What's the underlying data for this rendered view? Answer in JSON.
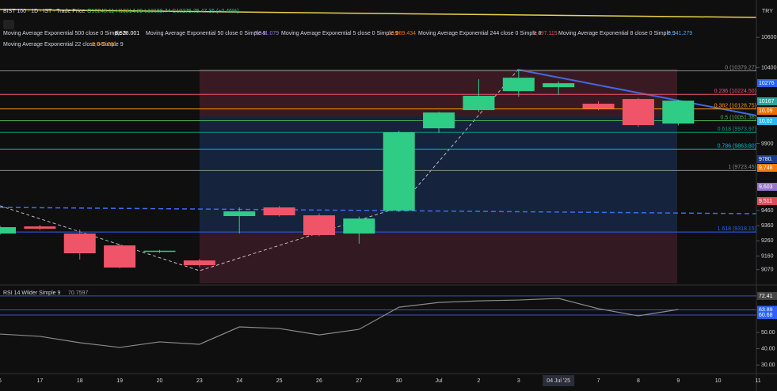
{
  "header": {
    "symbol": "BIST 100 · 1D · IST · Trade Price",
    "ohlc": "O10248.11 H10314.29 L10188.74 C10275.75 47.36 (+0.46%)",
    "currency": "TRY"
  },
  "indicators": [
    {
      "name": "Moving Average Exponential 500 close 0 Simple 9",
      "value": "8,528.001",
      "color": "#ffffff"
    },
    {
      "name": "Moving Average Exponential 50 close 0 Simple 9",
      "value": "9,541.079",
      "color": "#9575cd"
    },
    {
      "name": "Moving Average Exponential 5 close 0 Simple 9",
      "value": "10,089.434",
      "color": "#ef6c00"
    },
    {
      "name": "Moving Average Exponential 244 close 0 Simple 9",
      "value": "9,497.115",
      "color": "#e04a5a"
    },
    {
      "name": "Moving Average Exponential 8 close 0 Simple 9",
      "value": "9,941.279",
      "color": "#42a5f5"
    },
    {
      "name": "Moving Average Exponential 22 close 0 Simple 9",
      "value": "9,640.261",
      "color": "#f57c00"
    }
  ],
  "price_tags": [
    {
      "label": "10276",
      "color": "#2962ff"
    },
    {
      "label": "10167",
      "color": "#26a69a"
    },
    {
      "label": "10,09",
      "color": "#ef6c00"
    },
    {
      "label": "10,02",
      "color": "#29b6f6"
    },
    {
      "label": "9780.",
      "color": "#1e3a8a"
    },
    {
      "label": "9,748",
      "color": "#f57c00"
    },
    {
      "label": "9,603",
      "color": "#9575cd"
    },
    {
      "label": "9,511",
      "color": "#e04a5a"
    }
  ],
  "chart_data": [
    {
      "type": "candlestick",
      "categories": [
        "6",
        "17",
        "18",
        "19",
        "20",
        "23",
        "24",
        "25",
        "26",
        "27",
        "30",
        "Jul",
        "2",
        "3",
        "04 Jul '25",
        "7",
        "8",
        "9",
        "10",
        "11"
      ],
      "open": [
        9308,
        9355,
        9308,
        9230,
        9188,
        9131,
        9423,
        9480,
        9428,
        9308,
        9459,
        10001,
        10121,
        10246,
        10272,
        10163,
        10194,
        10032,
        null,
        null
      ],
      "high": [
        9360,
        9365,
        9334,
        9240,
        9200,
        9140,
        9480,
        9490,
        9440,
        9420,
        9985,
        10110,
        10324,
        10386,
        10310,
        10180,
        10200,
        10190,
        null,
        null
      ],
      "low": [
        9300,
        9330,
        9137,
        9080,
        9180,
        9085,
        9308,
        9420,
        9290,
        9241,
        9450,
        9970,
        10110,
        10209,
        10220,
        10120,
        10010,
        10020,
        null,
        null
      ],
      "close": [
        9350,
        9340,
        9178,
        9084,
        9195,
        9100,
        9454,
        9428,
        9298,
        9407,
        9975,
        10105,
        10215,
        10334,
        10298,
        10131,
        10022,
        10183,
        null,
        null
      ],
      "up_color": "#2ecc85",
      "down_color": "#f05468",
      "ylim": [
        8980,
        10700
      ],
      "yticks": [
        10600,
        10400,
        9900,
        9460,
        9360,
        9260,
        9160,
        9070
      ],
      "annotations": [
        {
          "value": 10379.27,
          "label": "0 (10379.27)",
          "color": "#888888"
        },
        {
          "value": 10224.5,
          "label": "0.236 (10224.50)",
          "color": "#f05468"
        },
        {
          "value": 10128.75,
          "label": "0.382 (10128.75)",
          "color": "#ff9800"
        },
        {
          "value": 10051.36,
          "label": "0.5 (10051.36)",
          "color": "#4caf50"
        },
        {
          "value": 9973.97,
          "label": "0.618 (9973.97)",
          "color": "#089981"
        },
        {
          "value": 9863.8,
          "label": "0.786 (9863.80)",
          "color": "#00bcd4"
        },
        {
          "value": 9723.45,
          "label": "1 (9723.45)",
          "color": "#888888"
        },
        {
          "value": 9318.15,
          "label": "1.618 (9318.15)",
          "color": "#2962ff"
        }
      ]
    },
    {
      "type": "line",
      "title": "RSI 14 Wilder Simple 9",
      "last": "70.7597",
      "color": "#8a8a8a",
      "values": [
        49,
        47.6,
        43.7,
        40.8,
        44.2,
        42.7,
        53.4,
        52.4,
        48.5,
        51.9,
        65.5,
        68.4,
        69.4,
        69.9,
        70.9,
        64.6,
        60.2,
        64.1,
        null,
        null
      ],
      "ylim": [
        25.7,
        78.2
      ],
      "yticks": [
        {
          "value": 30,
          "label": "30.00"
        },
        {
          "value": 40,
          "label": "40.00"
        },
        {
          "value": 50,
          "label": "50.00"
        }
      ],
      "value_tags": [
        {
          "value": 72.41,
          "label": "72.41"
        },
        {
          "value": 63.89,
          "label": "63.89"
        },
        {
          "value": 60.68,
          "label": "60.68"
        }
      ]
    }
  ]
}
